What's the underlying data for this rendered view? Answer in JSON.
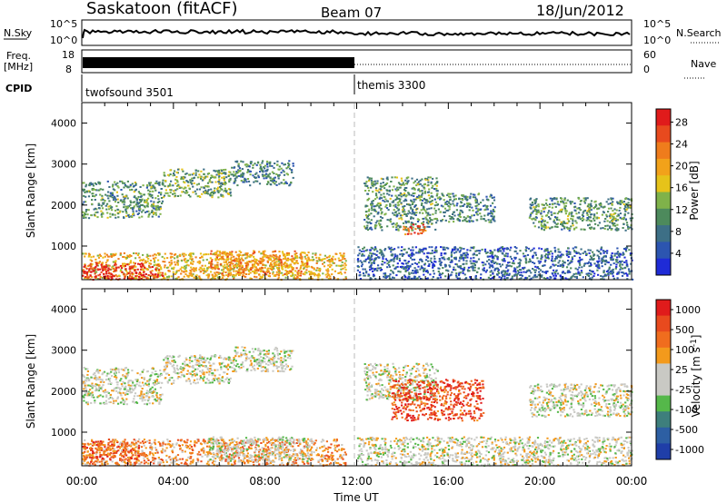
{
  "header": {
    "station": "Saskatoon (fitACF)",
    "beam": "Beam 07",
    "date": "18/Jun/2012"
  },
  "top_panels": {
    "nsky_label": "N.Sky",
    "nsky_ticks": [
      "10^5",
      "10^0"
    ],
    "nsearch_label": "N.Search",
    "freq_label_1": "Freq.",
    "freq_label_2": "[MHz]",
    "freq_ticks": [
      "18",
      "8"
    ],
    "nave_label": "Nave",
    "nave_ticks": [
      "60",
      "0"
    ],
    "cpid_label": "CPID",
    "cpid_segments": [
      {
        "name": "twofsound 3501",
        "start_hour": 0,
        "end_hour": 12
      },
      {
        "name": "themis 3300",
        "start_hour": 12,
        "end_hour": 24
      }
    ]
  },
  "colors": {
    "power_scale": [
      "#1f2bd6",
      "#2c55b0",
      "#3d6f86",
      "#4d8a5c",
      "#7fb24a",
      "#e6c31a",
      "#f2a21a",
      "#ef7c1c",
      "#e84a1e",
      "#e01b1b"
    ],
    "velocity_scale": [
      "#1f3ea8",
      "#2d5fa3",
      "#3e7f7c",
      "#55b84a",
      "#c9c9c4",
      "#c9c9c4",
      "#f39a1c",
      "#f06d1e",
      "#e84a1e",
      "#e01b1b"
    ]
  },
  "chart_data": [
    {
      "type": "heatmap",
      "panel": "power",
      "xlabel": "",
      "ylabel": "Slant Range [km]",
      "xlim": [
        0,
        24
      ],
      "ylim": [
        180,
        4500
      ],
      "x_ticks": [
        0,
        4,
        8,
        12,
        16,
        20,
        24
      ],
      "y_ticks": [
        1000,
        2000,
        3000,
        4000
      ],
      "colorbar_label": "Power [dB]",
      "colorbar_range": [
        0,
        30
      ],
      "colorbar_ticks": [
        "4",
        "8",
        "12",
        "16",
        "20",
        "24",
        "28"
      ],
      "regions": [
        {
          "t0": 0,
          "t1": 3.5,
          "r0": 1700,
          "r1": 2600,
          "level": 0.35
        },
        {
          "t0": 3.5,
          "t1": 6.5,
          "r0": 2200,
          "r1": 2900,
          "level": 0.4
        },
        {
          "t0": 6.5,
          "t1": 9.2,
          "r0": 2500,
          "r1": 3100,
          "level": 0.3
        },
        {
          "t0": 0,
          "t1": 11.5,
          "r0": 200,
          "r1": 850,
          "level": 0.6
        },
        {
          "t0": 0,
          "t1": 3.5,
          "r0": 200,
          "r1": 600,
          "level": 0.95
        },
        {
          "t0": 5.5,
          "t1": 10,
          "r0": 300,
          "r1": 900,
          "level": 0.7
        },
        {
          "t0": 12.3,
          "t1": 15.5,
          "r0": 1400,
          "r1": 2700,
          "level": 0.35
        },
        {
          "t0": 14,
          "t1": 15,
          "r0": 1300,
          "r1": 1550,
          "level": 0.85
        },
        {
          "t0": 15.5,
          "t1": 18,
          "r0": 1600,
          "r1": 2300,
          "level": 0.3
        },
        {
          "t0": 19.5,
          "t1": 24,
          "r0": 1400,
          "r1": 2200,
          "level": 0.35
        },
        {
          "t0": 12,
          "t1": 24,
          "r0": 200,
          "r1": 1000,
          "level": 0.2
        }
      ]
    },
    {
      "type": "heatmap",
      "panel": "velocity",
      "xlabel": "Time UT",
      "ylabel": "Slant Range [km]",
      "xlim": [
        0,
        24
      ],
      "ylim": [
        180,
        4500
      ],
      "x_ticks": [
        0,
        4,
        8,
        12,
        16,
        20,
        24
      ],
      "x_tick_labels": [
        "00:00",
        "04:00",
        "08:00",
        "12:00",
        "16:00",
        "20:00",
        "00:00"
      ],
      "y_ticks": [
        1000,
        2000,
        3000,
        4000
      ],
      "colorbar_label": "Velocity [m s^-1]",
      "colorbar_ticks": [
        "1000",
        "500",
        "100",
        "25",
        "-25",
        "-100",
        "-500",
        "-1000"
      ],
      "regions": [
        {
          "t0": 0,
          "t1": 3.5,
          "r0": 1700,
          "r1": 2600,
          "level": 0.5
        },
        {
          "t0": 3.5,
          "t1": 6.5,
          "r0": 2200,
          "r1": 2900,
          "level": 0.5
        },
        {
          "t0": 6.5,
          "t1": 9.2,
          "r0": 2500,
          "r1": 3100,
          "level": 0.5
        },
        {
          "t0": 0,
          "t1": 11.5,
          "r0": 200,
          "r1": 850,
          "level": 0.68
        },
        {
          "t0": 0,
          "t1": 2.5,
          "r0": 250,
          "r1": 800,
          "level": 0.8
        },
        {
          "t0": 5.5,
          "t1": 10,
          "r0": 300,
          "r1": 900,
          "level": 0.5
        },
        {
          "t0": 12.3,
          "t1": 15.5,
          "r0": 1800,
          "r1": 2700,
          "level": 0.5
        },
        {
          "t0": 13.5,
          "t1": 17.5,
          "r0": 1300,
          "r1": 2300,
          "level": 0.85
        },
        {
          "t0": 19.5,
          "t1": 24,
          "r0": 1400,
          "r1": 2200,
          "level": 0.5
        },
        {
          "t0": 12,
          "t1": 24,
          "r0": 200,
          "r1": 900,
          "level": 0.5
        }
      ]
    }
  ]
}
